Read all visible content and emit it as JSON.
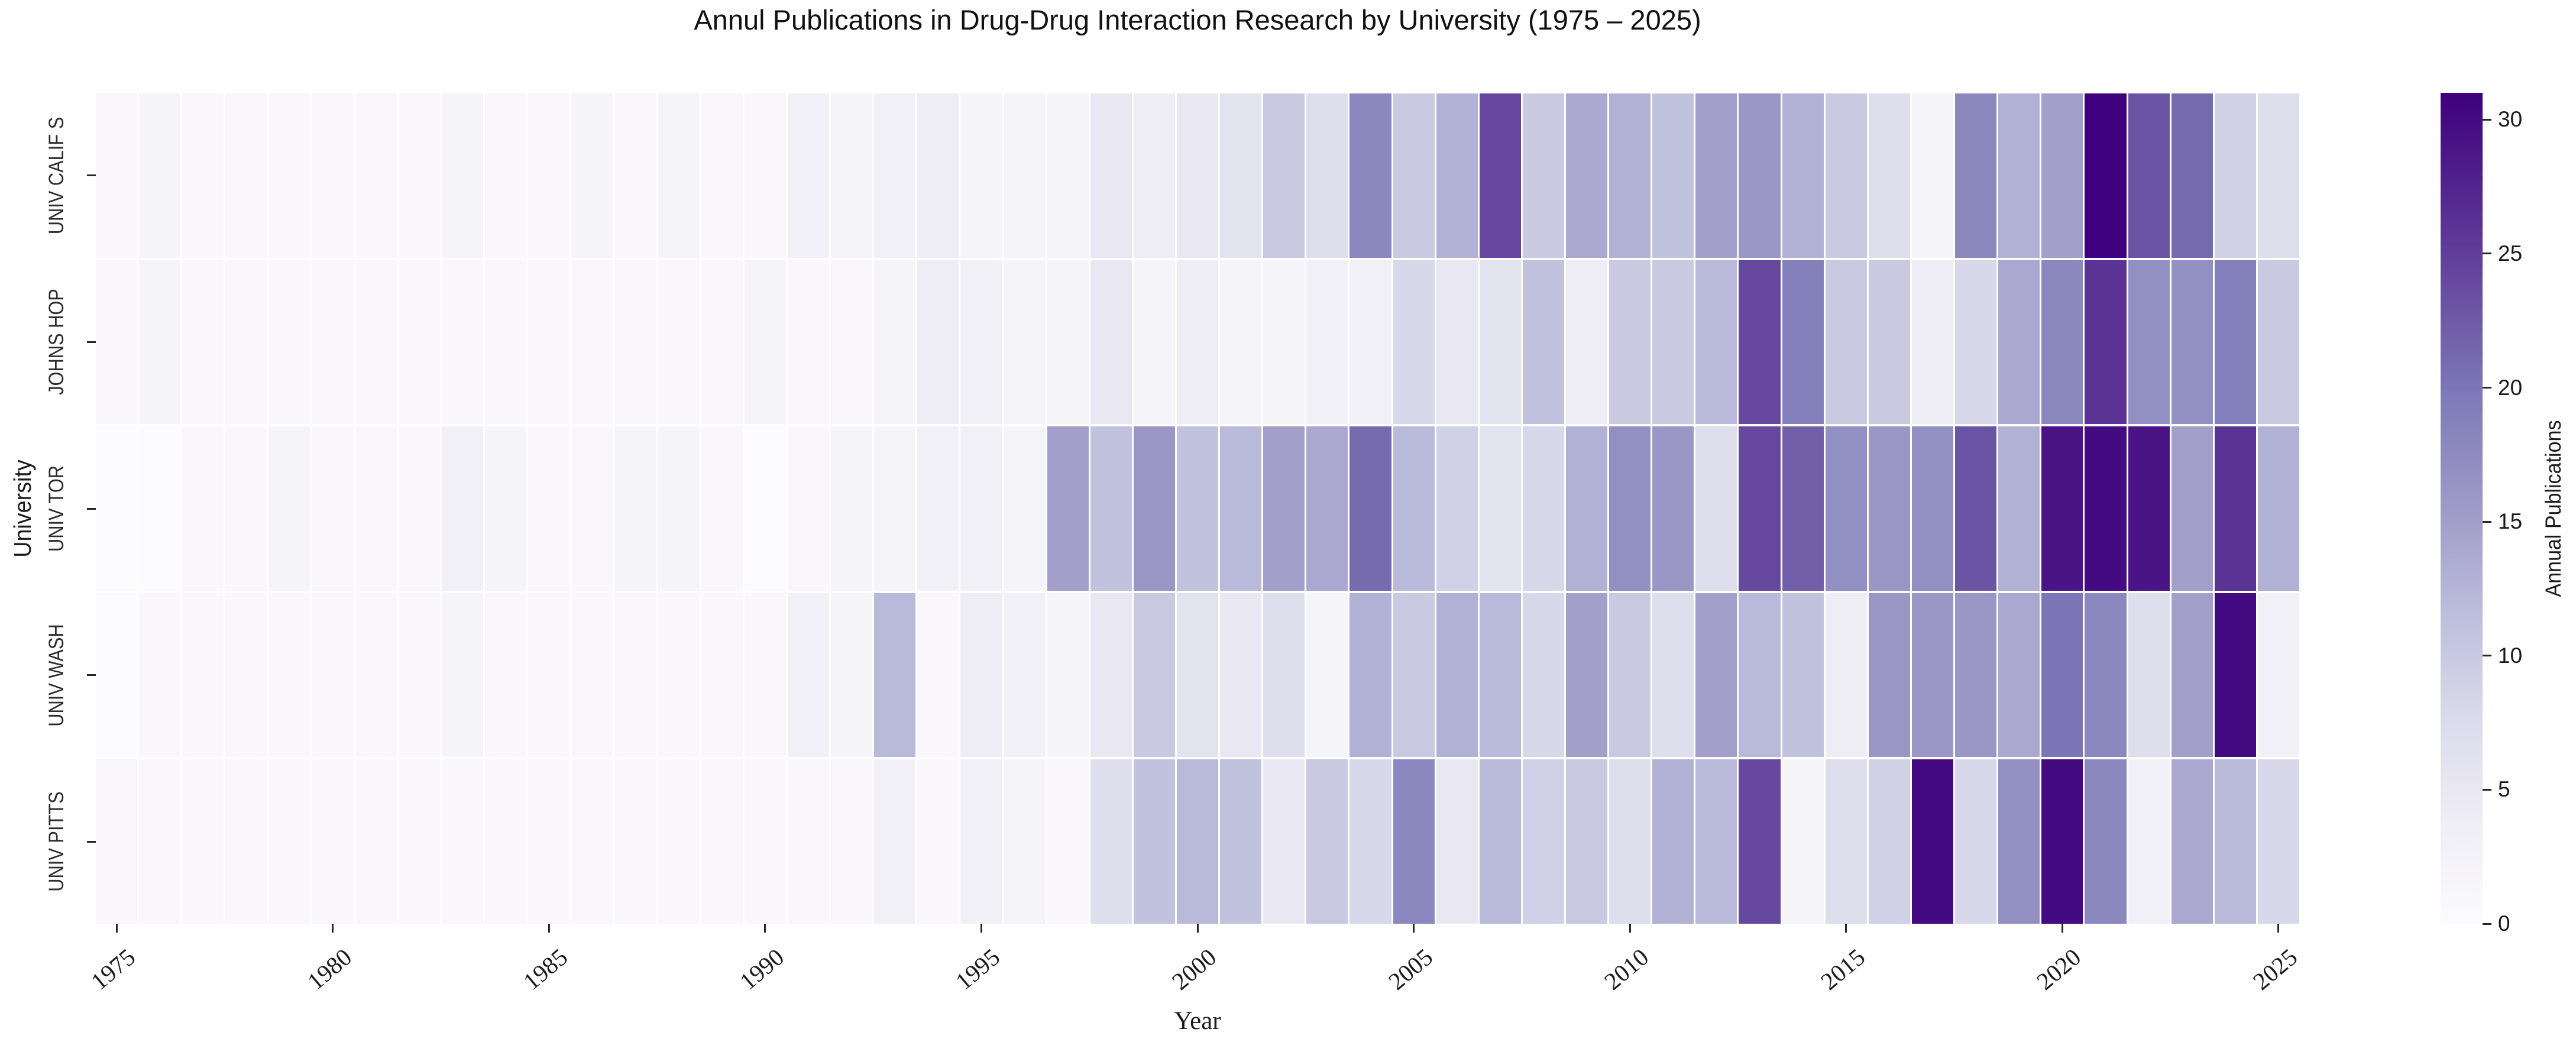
{
  "chart_data": {
    "type": "heatmap",
    "title": "Annul Publications in Drug-Drug Interaction Research by University (1975 – 2025)",
    "xlabel": "Year",
    "ylabel": "University",
    "colorbar_label": "Annual Publications",
    "colorbar_ticks": [
      0,
      5,
      10,
      15,
      20,
      25,
      30
    ],
    "vmin": 0,
    "vmax": 31,
    "colormap": "Purples",
    "colormap_stops": [
      "#fcfbfd",
      "#efedf5",
      "#dadaeb",
      "#bcbddc",
      "#9e9ac8",
      "#807dba",
      "#6a51a3",
      "#54278f",
      "#3f007d"
    ],
    "grid_gap_color": "#ffffff",
    "legend_position": "right-colorbar",
    "x": [
      1975,
      1976,
      1977,
      1978,
      1979,
      1980,
      1981,
      1982,
      1983,
      1984,
      1985,
      1986,
      1987,
      1988,
      1989,
      1990,
      1991,
      1992,
      1993,
      1994,
      1995,
      1996,
      1997,
      1998,
      1999,
      2000,
      2001,
      2002,
      2003,
      2004,
      2005,
      2006,
      2007,
      2008,
      2009,
      2010,
      2011,
      2012,
      2013,
      2014,
      2015,
      2016,
      2017,
      2018,
      2019,
      2020,
      2021,
      2022,
      2023,
      2024,
      2025
    ],
    "x_tick_labels": [
      "1975",
      "1980",
      "1985",
      "1990",
      "1995",
      "2000",
      "2005",
      "2010",
      "2015",
      "2020",
      "2025"
    ],
    "series": [
      {
        "name": "UNIV CALIF S",
        "values": [
          1,
          2,
          1,
          1,
          1,
          1,
          1,
          1,
          2,
          1,
          1,
          2,
          1,
          2,
          1,
          1,
          3,
          2,
          3,
          4,
          2,
          2,
          2,
          5,
          4,
          5,
          6,
          10,
          7,
          18,
          10,
          13,
          24,
          10,
          14,
          13,
          11,
          15,
          16,
          13,
          10,
          7,
          2,
          18,
          13,
          15,
          31,
          23,
          21,
          9,
          7
        ]
      },
      {
        "name": "JOHNS HOP",
        "values": [
          1,
          2,
          1,
          1,
          1,
          1,
          1,
          1,
          1,
          1,
          1,
          1,
          1,
          1,
          1,
          2,
          1,
          1,
          2,
          4,
          3,
          2,
          2,
          5,
          2,
          4,
          2,
          2,
          3,
          3,
          8,
          5,
          6,
          11,
          4,
          10,
          10,
          12,
          24,
          19,
          10,
          10,
          4,
          8,
          14,
          18,
          26,
          17,
          17,
          19,
          10
        ]
      },
      {
        "name": "UNIV TOR",
        "values": [
          0,
          0,
          1,
          1,
          2,
          1,
          1,
          1,
          3,
          2,
          1,
          1,
          2,
          2,
          1,
          0,
          1,
          2,
          2,
          3,
          3,
          2,
          15,
          11,
          16,
          11,
          12,
          15,
          14,
          21,
          12,
          9,
          6,
          8,
          13,
          17,
          16,
          7,
          24,
          22,
          17,
          16,
          17,
          23,
          13,
          29,
          30,
          29,
          15,
          26,
          13
        ]
      },
      {
        "name": "UNIV WASH",
        "values": [
          0,
          1,
          1,
          1,
          1,
          1,
          1,
          1,
          2,
          1,
          1,
          1,
          1,
          1,
          1,
          1,
          3,
          2,
          12,
          1,
          4,
          3,
          2,
          5,
          10,
          6,
          5,
          7,
          2,
          13,
          10,
          13,
          12,
          8,
          15,
          10,
          7,
          15,
          12,
          11,
          4,
          16,
          16,
          16,
          14,
          20,
          18,
          7,
          15,
          30,
          3
        ]
      },
      {
        "name": "UNIV PITTS",
        "values": [
          1,
          1,
          1,
          1,
          1,
          1,
          1,
          1,
          1,
          1,
          1,
          1,
          1,
          1,
          1,
          1,
          1,
          1,
          3,
          1,
          3,
          2,
          1,
          7,
          11,
          12,
          11,
          5,
          10,
          8,
          18,
          5,
          12,
          9,
          10,
          7,
          13,
          12,
          24,
          2,
          7,
          9,
          30,
          8,
          17,
          30,
          18,
          3,
          14,
          12,
          8
        ]
      }
    ]
  }
}
